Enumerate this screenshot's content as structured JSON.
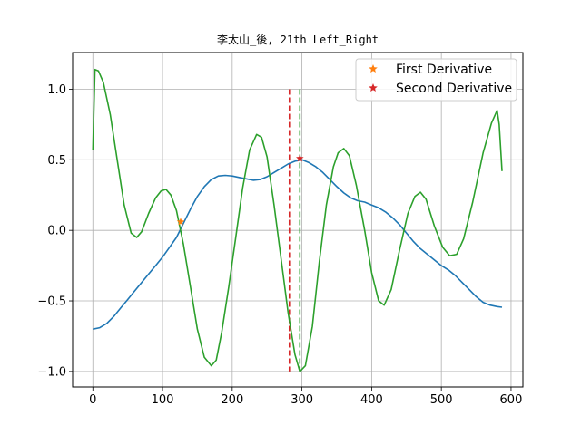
{
  "chart_data": {
    "type": "line",
    "title": "李太山_後, 21th Left_Right",
    "xlabel": "",
    "ylabel": "",
    "xlim": [
      -29,
      617
    ],
    "ylim": [
      -1.11,
      1.26
    ],
    "x_ticks": [
      0,
      100,
      200,
      300,
      400,
      500,
      600
    ],
    "y_ticks": [
      -1.0,
      -0.5,
      0.0,
      0.5,
      1.0
    ],
    "grid": true,
    "legend_position": "top-right",
    "series": [
      {
        "color": "#1f77b4",
        "points": [
          [
            0,
            -0.7
          ],
          [
            10,
            -0.69
          ],
          [
            20,
            -0.66
          ],
          [
            30,
            -0.61
          ],
          [
            40,
            -0.55
          ],
          [
            50,
            -0.49
          ],
          [
            60,
            -0.43
          ],
          [
            70,
            -0.37
          ],
          [
            80,
            -0.31
          ],
          [
            90,
            -0.25
          ],
          [
            100,
            -0.19
          ],
          [
            110,
            -0.12
          ],
          [
            120,
            -0.05
          ],
          [
            130,
            0.05
          ],
          [
            140,
            0.15
          ],
          [
            150,
            0.24
          ],
          [
            160,
            0.31
          ],
          [
            170,
            0.36
          ],
          [
            180,
            0.385
          ],
          [
            190,
            0.39
          ],
          [
            200,
            0.385
          ],
          [
            210,
            0.375
          ],
          [
            220,
            0.365
          ],
          [
            230,
            0.355
          ],
          [
            240,
            0.36
          ],
          [
            250,
            0.38
          ],
          [
            260,
            0.41
          ],
          [
            270,
            0.44
          ],
          [
            280,
            0.47
          ],
          [
            290,
            0.49
          ],
          [
            300,
            0.5
          ],
          [
            310,
            0.48
          ],
          [
            320,
            0.45
          ],
          [
            330,
            0.41
          ],
          [
            340,
            0.36
          ],
          [
            350,
            0.31
          ],
          [
            360,
            0.265
          ],
          [
            370,
            0.23
          ],
          [
            380,
            0.21
          ],
          [
            390,
            0.2
          ],
          [
            400,
            0.18
          ],
          [
            410,
            0.16
          ],
          [
            420,
            0.13
          ],
          [
            430,
            0.09
          ],
          [
            440,
            0.04
          ],
          [
            450,
            -0.02
          ],
          [
            460,
            -0.08
          ],
          [
            470,
            -0.13
          ],
          [
            480,
            -0.17
          ],
          [
            490,
            -0.21
          ],
          [
            500,
            -0.25
          ],
          [
            510,
            -0.28
          ],
          [
            520,
            -0.32
          ],
          [
            530,
            -0.37
          ],
          [
            540,
            -0.42
          ],
          [
            550,
            -0.47
          ],
          [
            560,
            -0.51
          ],
          [
            570,
            -0.53
          ],
          [
            580,
            -0.54
          ],
          [
            587,
            -0.545
          ]
        ]
      },
      {
        "color": "#2ca02c",
        "points": [
          [
            0,
            0.57
          ],
          [
            3,
            1.14
          ],
          [
            8,
            1.13
          ],
          [
            15,
            1.05
          ],
          [
            25,
            0.82
          ],
          [
            35,
            0.5
          ],
          [
            45,
            0.18
          ],
          [
            55,
            -0.02
          ],
          [
            63,
            -0.05
          ],
          [
            70,
            -0.01
          ],
          [
            80,
            0.12
          ],
          [
            90,
            0.23
          ],
          [
            98,
            0.28
          ],
          [
            105,
            0.29
          ],
          [
            112,
            0.25
          ],
          [
            120,
            0.14
          ],
          [
            130,
            -0.1
          ],
          [
            140,
            -0.4
          ],
          [
            150,
            -0.7
          ],
          [
            160,
            -0.9
          ],
          [
            170,
            -0.96
          ],
          [
            177,
            -0.92
          ],
          [
            185,
            -0.72
          ],
          [
            195,
            -0.4
          ],
          [
            205,
            -0.05
          ],
          [
            215,
            0.3
          ],
          [
            225,
            0.57
          ],
          [
            235,
            0.68
          ],
          [
            242,
            0.66
          ],
          [
            250,
            0.52
          ],
          [
            260,
            0.18
          ],
          [
            270,
            -0.2
          ],
          [
            280,
            -0.58
          ],
          [
            290,
            -0.88
          ],
          [
            297,
            -1.0
          ],
          [
            305,
            -0.96
          ],
          [
            315,
            -0.68
          ],
          [
            325,
            -0.22
          ],
          [
            335,
            0.18
          ],
          [
            345,
            0.45
          ],
          [
            352,
            0.55
          ],
          [
            360,
            0.58
          ],
          [
            368,
            0.53
          ],
          [
            378,
            0.32
          ],
          [
            390,
            0.0
          ],
          [
            400,
            -0.3
          ],
          [
            410,
            -0.5
          ],
          [
            418,
            -0.53
          ],
          [
            428,
            -0.42
          ],
          [
            440,
            -0.14
          ],
          [
            452,
            0.12
          ],
          [
            462,
            0.24
          ],
          [
            470,
            0.27
          ],
          [
            478,
            0.22
          ],
          [
            490,
            0.03
          ],
          [
            502,
            -0.12
          ],
          [
            512,
            -0.18
          ],
          [
            522,
            -0.17
          ],
          [
            532,
            -0.06
          ],
          [
            545,
            0.2
          ],
          [
            560,
            0.55
          ],
          [
            572,
            0.76
          ],
          [
            580,
            0.85
          ],
          [
            583,
            0.75
          ],
          [
            587,
            0.42
          ]
        ]
      }
    ],
    "markers": [
      {
        "name": "First Derivative",
        "marker": "star",
        "color": "#ff7f0e",
        "x": 126,
        "y": 0.06
      },
      {
        "name": "Second Derivative",
        "marker": "star",
        "color": "#d62728",
        "x": 297,
        "y": 0.51
      }
    ],
    "vlines": [
      {
        "x": 282,
        "color": "#d62728",
        "style": "dashed",
        "ymin": -1.0,
        "ymax": 1.0
      },
      {
        "x": 297,
        "color": "#2ca02c",
        "style": "dashed",
        "ymin": -1.0,
        "ymax": 1.0
      }
    ]
  }
}
